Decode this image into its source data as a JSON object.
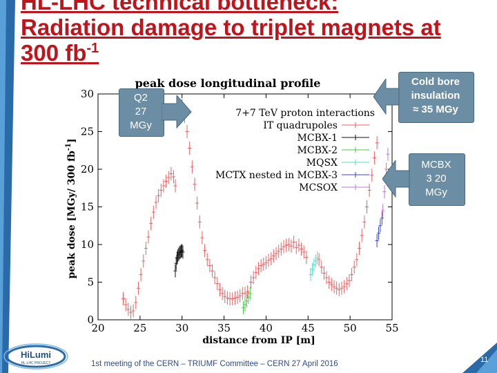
{
  "slide": {
    "title_line1": "HL-LHC technical bottleneck:",
    "title_line2": "Radiation damage to triplet magnets at",
    "title_line3": "300 fb",
    "title_sup": "-1",
    "footer": "1st meeting of the CERN – TRIUMF Committee – CERN 27 April 2016",
    "page_number": "11",
    "logo_text": "HiLumi",
    "logo_subtext": "HL-LHC PROJECT"
  },
  "callouts": {
    "q2": [
      "Q2",
      "27",
      "MGy"
    ],
    "cold_bore": [
      "Cold bore",
      "insulation",
      "≈ 35 MGy"
    ],
    "mcbx": [
      "MCBX",
      "3 20",
      "MGy"
    ]
  },
  "colors": {
    "title": "#c0141c",
    "callout_fill": "#6c8ea5",
    "it_quadrupoles": "#ee5e5e",
    "mcbx1": "#111111",
    "mcbx2": "#44cc44",
    "mqsx": "#55d8c8",
    "mctx": "#3344bb",
    "mcsox": "#c070e8"
  },
  "chart_data": {
    "type": "scatter",
    "title": "peak dose longitudinal profile",
    "xlabel": "distance from IP [m]",
    "ylabel": "peak dose [MGy/ 300 fb",
    "ylabel_sup": "-1",
    "ylabel_end": "]",
    "xlim": [
      20,
      55
    ],
    "ylim": [
      0,
      30
    ],
    "xticks": [
      20,
      25,
      30,
      35,
      40,
      45,
      50,
      55
    ],
    "yticks": [
      0,
      5,
      10,
      15,
      20,
      25,
      30
    ],
    "legend_title": "7+7 TeV proton interactions",
    "legend_position": "top-right",
    "error_bars": true,
    "series": [
      {
        "name": "IT quadrupoles",
        "color_key": "it_quadrupoles",
        "x": [
          23.0,
          23.3,
          23.6,
          23.9,
          24.2,
          24.5,
          24.8,
          25.1,
          25.4,
          25.7,
          26.0,
          26.3,
          26.6,
          26.9,
          27.2,
          27.5,
          27.8,
          28.1,
          28.4,
          28.7,
          29.0,
          29.2,
          30.0,
          30.3,
          30.6,
          30.9,
          31.2,
          31.5,
          31.8,
          32.1,
          32.4,
          32.7,
          33.0,
          33.3,
          33.6,
          33.9,
          34.2,
          34.5,
          34.8,
          35.1,
          35.4,
          35.7,
          36.0,
          36.3,
          36.6,
          36.9,
          37.2,
          37.5,
          37.8,
          38.2,
          38.5,
          38.8,
          39.1,
          39.4,
          39.7,
          40.0,
          40.3,
          40.6,
          40.9,
          41.2,
          41.5,
          41.8,
          42.1,
          42.4,
          42.7,
          43.0,
          43.3,
          43.6,
          43.9,
          44.2,
          44.5,
          44.8,
          46.3,
          46.6,
          46.9,
          47.2,
          47.5,
          47.8,
          48.1,
          48.4,
          48.7,
          49.0,
          49.3,
          49.6,
          49.9,
          50.2,
          50.5,
          50.8,
          51.1,
          51.4,
          51.7,
          52.0,
          52.3,
          52.6,
          52.9,
          53.2
        ],
        "y": [
          2.8,
          2.0,
          1.4,
          1.0,
          1.2,
          2.3,
          4.2,
          6.0,
          7.8,
          9.5,
          11.0,
          12.8,
          14.3,
          15.6,
          16.5,
          17.2,
          17.8,
          18.4,
          18.9,
          19.4,
          19.0,
          17.8,
          28.5,
          27.0,
          25.0,
          22.8,
          20.3,
          18.0,
          15.5,
          13.0,
          10.9,
          9.2,
          8.0,
          7.2,
          6.5,
          5.6,
          4.8,
          4.0,
          3.5,
          3.1,
          2.9,
          2.8,
          2.8,
          2.9,
          3.0,
          3.2,
          3.5,
          3.5,
          3.7,
          5.0,
          5.6,
          6.3,
          6.8,
          7.2,
          7.4,
          7.6,
          7.9,
          8.1,
          8.5,
          8.8,
          9.1,
          9.4,
          9.7,
          9.9,
          10.0,
          9.8,
          10.3,
          9.6,
          9.9,
          9.4,
          9.0,
          8.3,
          8.0,
          7.0,
          6.2,
          5.6,
          5.0,
          4.7,
          4.4,
          4.2,
          4.0,
          4.2,
          4.4,
          4.8,
          5.2,
          6.0,
          7.0,
          8.0,
          9.5,
          11.2,
          13.0,
          15.0,
          17.2,
          19.2,
          21.5,
          23.5
        ]
      },
      {
        "name": "MCBX-1",
        "color_key": "mcbx1",
        "x": [
          29.2,
          29.3,
          29.4,
          29.5,
          29.6,
          29.7,
          29.8,
          29.9,
          30.0,
          30.1
        ],
        "y": [
          6.5,
          7.5,
          8.2,
          8.5,
          8.7,
          8.9,
          9.0,
          9.1,
          9.2,
          9.0
        ]
      },
      {
        "name": "MCBX-2",
        "color_key": "mcbx2",
        "x": [
          37.3,
          37.5,
          37.7,
          37.9,
          38.1
        ],
        "y": [
          1.6,
          2.0,
          2.5,
          3.0,
          3.5
        ]
      },
      {
        "name": "MQSX",
        "color_key": "mqsx",
        "x": [
          45.3,
          45.5,
          45.7,
          45.9,
          46.1
        ],
        "y": [
          6.0,
          6.7,
          7.3,
          7.8,
          8.2
        ]
      },
      {
        "name": "MCTX nested in MCBX-3",
        "color_key": "mctx",
        "x": [
          53.2,
          53.4,
          53.6,
          53.8
        ],
        "y": [
          10.5,
          11.5,
          12.5,
          13.5
        ]
      },
      {
        "name": "MCSOX",
        "color_key": "mcsox",
        "x": [
          53.9,
          54.1,
          54.3,
          54.5
        ],
        "y": [
          14.5,
          17.0,
          20.0,
          22.0
        ]
      }
    ]
  }
}
